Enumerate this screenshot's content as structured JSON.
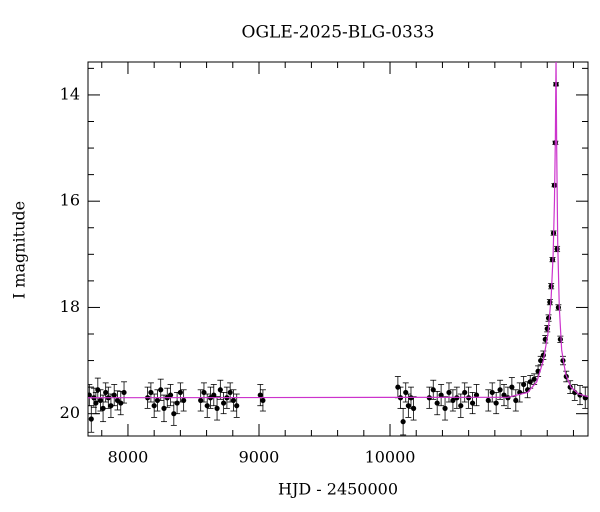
{
  "chart_data": {
    "type": "scatter",
    "title": "OGLE-2025-BLG-0333",
    "xlabel": "HJD - 2450000",
    "ylabel": "I magnitude",
    "xlim": [
      7695,
      11511
    ],
    "ylim": [
      20.42,
      13.38
    ],
    "xticks": [
      8000,
      9000,
      10000
    ],
    "yticks": [
      14,
      16,
      18,
      20
    ],
    "xticks_minor": [
      7800,
      8200,
      8400,
      8600,
      8800,
      9200,
      9400,
      9600,
      9800,
      10200,
      10400,
      10600,
      10800,
      11000,
      11200,
      11400
    ],
    "yticks_minor": [
      13.5,
      14.5,
      15,
      15.5,
      16.5,
      17,
      17.5,
      18.5,
      19,
      19.5
    ],
    "series": [
      {
        "type": "errorbar",
        "color": "#000000",
        "x": [
          7705,
          7720,
          7740,
          7755,
          7770,
          7790,
          7810,
          7830,
          7850,
          7870,
          7895,
          7920,
          7945,
          7970,
          8150,
          8175,
          8200,
          8225,
          8250,
          8275,
          8300,
          8325,
          8350,
          8375,
          8400,
          8425,
          8555,
          8580,
          8605,
          8630,
          8655,
          8680,
          8705,
          8730,
          8755,
          8780,
          8805,
          8830,
          9010,
          9030,
          10060,
          10080,
          10100,
          10120,
          10140,
          10160,
          10180,
          10300,
          10330,
          10360,
          10390,
          10420,
          10450,
          10480,
          10510,
          10540,
          10570,
          10600,
          10630,
          10660,
          10750,
          10780,
          10810,
          10840,
          10870,
          10900,
          10930,
          10960,
          10990,
          11020,
          11050,
          11070,
          11100,
          11130,
          11150,
          11170,
          11185,
          11200,
          11210,
          11220,
          11230,
          11240,
          11248,
          11255,
          11262,
          11267,
          11275,
          11285,
          11300,
          11320,
          11345,
          11375,
          11410,
          11450,
          11490
        ],
        "values": [
          19.65,
          20.1,
          19.7,
          19.8,
          19.55,
          19.75,
          19.9,
          19.6,
          19.7,
          19.85,
          19.65,
          19.75,
          19.8,
          19.6,
          19.7,
          19.6,
          19.85,
          19.75,
          19.55,
          19.9,
          19.7,
          19.65,
          20.0,
          19.8,
          19.6,
          19.75,
          19.75,
          19.6,
          19.85,
          19.7,
          19.65,
          19.9,
          19.55,
          19.8,
          19.7,
          19.6,
          19.75,
          19.85,
          19.65,
          19.75,
          19.5,
          19.7,
          20.15,
          19.6,
          19.85,
          19.7,
          19.9,
          19.7,
          19.55,
          19.8,
          19.65,
          19.9,
          19.6,
          19.75,
          19.7,
          19.85,
          19.6,
          19.7,
          19.8,
          19.65,
          19.75,
          19.6,
          19.8,
          19.55,
          19.65,
          19.7,
          19.5,
          19.75,
          19.6,
          19.45,
          19.55,
          19.4,
          19.35,
          19.2,
          19.0,
          18.9,
          18.6,
          18.4,
          18.2,
          17.9,
          17.6,
          17.1,
          16.6,
          15.7,
          14.9,
          13.8,
          16.9,
          18.0,
          18.6,
          19.0,
          19.3,
          19.5,
          19.6,
          19.65,
          19.7
        ],
        "errors": [
          0.2,
          0.25,
          0.18,
          0.2,
          0.22,
          0.2,
          0.25,
          0.18,
          0.2,
          0.22,
          0.2,
          0.18,
          0.22,
          0.2,
          0.2,
          0.18,
          0.22,
          0.2,
          0.2,
          0.25,
          0.18,
          0.2,
          0.22,
          0.2,
          0.18,
          0.2,
          0.2,
          0.18,
          0.22,
          0.2,
          0.2,
          0.22,
          0.18,
          0.2,
          0.2,
          0.18,
          0.2,
          0.22,
          0.2,
          0.2,
          0.2,
          0.2,
          0.25,
          0.18,
          0.22,
          0.2,
          0.22,
          0.2,
          0.18,
          0.22,
          0.2,
          0.22,
          0.18,
          0.2,
          0.2,
          0.22,
          0.18,
          0.2,
          0.2,
          0.2,
          0.2,
          0.18,
          0.2,
          0.18,
          0.2,
          0.2,
          0.18,
          0.2,
          0.18,
          0.15,
          0.15,
          0.12,
          0.1,
          0.1,
          0.08,
          0.08,
          0.07,
          0.06,
          0.06,
          0.05,
          0.05,
          0.04,
          0.04,
          0.03,
          0.03,
          0.03,
          0.05,
          0.05,
          0.06,
          0.08,
          0.1,
          0.12,
          0.15,
          0.18,
          0.2
        ]
      },
      {
        "type": "line",
        "color": "#cc33cc",
        "x": [
          7695,
          10900,
          11050,
          11120,
          11170,
          11205,
          11230,
          11245,
          11255,
          11262,
          11267,
          11272,
          11280,
          11292,
          11310,
          11340,
          11380,
          11440,
          11511
        ],
        "values": [
          19.7,
          19.69,
          19.6,
          19.4,
          19.0,
          18.5,
          17.8,
          17.0,
          16.0,
          14.8,
          13.3,
          15.0,
          16.8,
          18.0,
          18.8,
          19.25,
          19.5,
          19.63,
          19.68
        ]
      }
    ]
  }
}
